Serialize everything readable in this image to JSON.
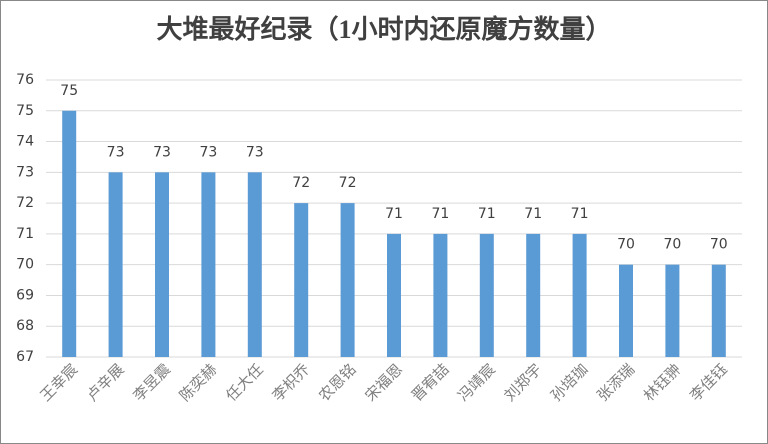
{
  "chart_data": {
    "type": "bar",
    "title": "大堆最好纪录（1小时内还原魔方数量）",
    "categories": [
      "王幸宸",
      "卢辛展",
      "李昱震",
      "陈奕赫",
      "任大任",
      "李枳乔",
      "农恩铭",
      "宋福恩",
      "晋宥喆",
      "冯靖宸",
      "刘郑宇",
      "孙培珈",
      "张添瑞",
      "林钰翀",
      "李佳钰"
    ],
    "values": [
      75,
      73,
      73,
      73,
      73,
      72,
      72,
      71,
      71,
      71,
      71,
      71,
      70,
      70,
      70
    ],
    "color": "#5b9bd5",
    "ylim": [
      67,
      76
    ],
    "yticks": [
      67,
      68,
      69,
      70,
      71,
      72,
      73,
      74,
      75,
      76
    ],
    "grid": true
  }
}
